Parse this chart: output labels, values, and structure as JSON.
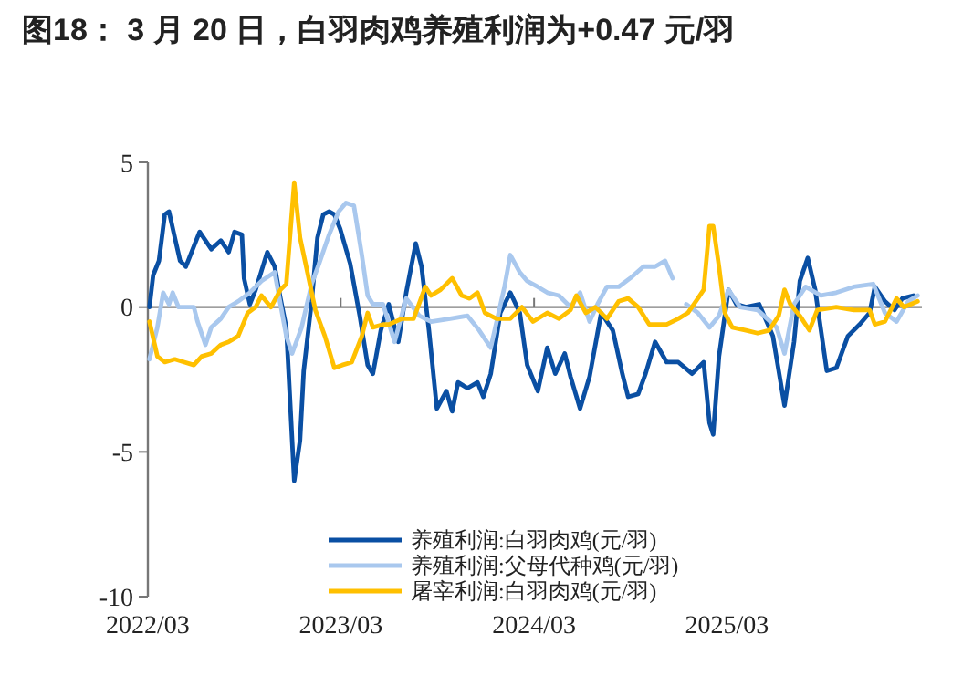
{
  "chart_data": {
    "type": "line",
    "title": "图18：  3 月 20 日，白羽肉鸡养殖利润为+0.47 元/羽",
    "xlim": [
      "2022-03-01",
      "2026-03-05"
    ],
    "xticks": [
      {
        "value": "2022-03-01",
        "label": "2022/03"
      },
      {
        "value": "2023-03-01",
        "label": "2023/03"
      },
      {
        "value": "2024-03-01",
        "label": "2024/03"
      },
      {
        "value": "2025-03-01",
        "label": "2025/03"
      }
    ],
    "ylim": [
      -10,
      5
    ],
    "yticks": [
      -10,
      -5,
      0,
      5
    ],
    "grid": false,
    "ref_lines": [
      {
        "axis": "y",
        "value": 0,
        "color": "#7f7f7f"
      }
    ],
    "legend": "bottom",
    "marker": "none",
    "line_style": "solid",
    "series": [
      {
        "name": "养殖利润:白羽肉鸡(元/羽)",
        "color": "#0a4fa3",
        "x": [
          "2022-03-04",
          "2022-03-11",
          "2022-03-22",
          "2022-04-02",
          "2022-04-10",
          "2022-04-21",
          "2022-05-01",
          "2022-05-12",
          "2022-05-27",
          "2022-06-07",
          "2022-06-18",
          "2022-06-29",
          "2022-07-17",
          "2022-08-01",
          "2022-08-12",
          "2022-08-26",
          "2022-08-30",
          "2022-09-10",
          "2022-09-21",
          "2022-10-13",
          "2022-10-27",
          "2022-11-07",
          "2022-11-18",
          "2022-12-03",
          "2022-12-14",
          "2022-12-21",
          "2023-01-05",
          "2023-01-16",
          "2023-01-27",
          "2023-02-07",
          "2023-02-17",
          "2023-02-28",
          "2023-03-19",
          "2023-04-06",
          "2023-04-21",
          "2023-05-01",
          "2023-05-16",
          "2023-05-31",
          "2023-06-18",
          "2023-07-03",
          "2023-07-21",
          "2023-08-01",
          "2023-08-15",
          "2023-08-30",
          "2023-09-17",
          "2023-09-28",
          "2023-10-09",
          "2023-10-27",
          "2023-11-15",
          "2023-11-26",
          "2023-12-10",
          "2023-12-28",
          "2024-01-16",
          "2024-02-03",
          "2024-02-17",
          "2024-03-08",
          "2024-03-26",
          "2024-04-10",
          "2024-04-28",
          "2024-05-09",
          "2024-05-27",
          "2024-06-14",
          "2024-07-06",
          "2024-07-28",
          "2024-08-15",
          "2024-08-26",
          "2024-09-14",
          "2024-09-28",
          "2024-10-16",
          "2024-11-07",
          "2024-11-29",
          "2024-12-25",
          "2025-01-16",
          "2025-01-27",
          "2025-02-03",
          "2025-02-14",
          "2025-03-04",
          "2025-03-19",
          "2025-04-06",
          "2025-05-01",
          "2025-05-27",
          "2025-06-18",
          "2025-07-06",
          "2025-07-17",
          "2025-08-01",
          "2025-08-15",
          "2025-09-06",
          "2025-09-24",
          "2025-10-16",
          "2025-11-07",
          "2025-11-26",
          "2025-12-06",
          "2025-12-25",
          "2026-01-12",
          "2026-01-27",
          "2026-02-17"
        ],
        "values": [
          0,
          1.1,
          1.6,
          3.2,
          3.3,
          2.4,
          1.6,
          1.4,
          2.1,
          2.6,
          2.3,
          2,
          2.3,
          1.9,
          2.6,
          2.5,
          1,
          0.1,
          0.6,
          1.9,
          1.4,
          0.3,
          -0.7,
          -6,
          -4.6,
          -2.2,
          0.2,
          2.4,
          3.2,
          3.3,
          3.2,
          2.7,
          1.5,
          -0.3,
          -2,
          -2.3,
          -0.8,
          0.1,
          -1.2,
          0.5,
          2.2,
          1.4,
          -0.8,
          -3.5,
          -2.9,
          -3.6,
          -2.6,
          -2.8,
          -2.6,
          -3.1,
          -2.3,
          -0.2,
          0.5,
          -0.2,
          -2,
          -2.9,
          -1.4,
          -2.3,
          -1.6,
          -2.4,
          -3.5,
          -2.4,
          -0.2,
          -0.8,
          -2.3,
          -3.1,
          -3,
          -2.3,
          -1.2,
          -1.9,
          -1.9,
          -2.3,
          -1.9,
          -4,
          -4.4,
          -1.7,
          0.6,
          0.1,
          0,
          0.1,
          -1,
          -3.4,
          -1.2,
          0.9,
          1.7,
          0.6,
          -2.2,
          -2.1,
          -1,
          -0.6,
          -0.2,
          0.7,
          0.2,
          -0.1,
          0.3,
          0.4
        ]
      },
      {
        "name": "养殖利润:父母代种鸡(元/羽)",
        "color": "#a9c8ee",
        "x": [
          "2022-03-04",
          "2022-03-19",
          "2022-03-30",
          "2022-04-10",
          "2022-04-17",
          "2022-04-28",
          "2022-05-27",
          "2022-06-03",
          "2022-06-18",
          "2022-06-29",
          "2022-07-17",
          "2022-08-01",
          "2022-08-19",
          "2022-09-10",
          "2022-10-02",
          "2022-10-27",
          "2022-11-07",
          "2022-11-18",
          "2022-11-29",
          "2022-12-17",
          "2023-01-05",
          "2023-01-19",
          "2023-02-07",
          "2023-02-25",
          "2023-03-11",
          "2023-03-26",
          "2023-04-10",
          "2023-04-21",
          "2023-05-01",
          "2023-05-20",
          "2023-06-11",
          "2023-07-03",
          "2023-07-28",
          "2023-08-19",
          "2023-09-24",
          "2023-10-27",
          "2023-11-18",
          "2023-12-10",
          "2024-01-05",
          "2024-01-16",
          "2024-02-03",
          "2024-02-17",
          "2024-03-08",
          "2024-03-26",
          "2024-04-17",
          "2024-05-09",
          "2024-05-27",
          "2024-06-14",
          "2024-06-29",
          "2024-07-17",
          "2024-08-08",
          "2024-08-30",
          "2024-09-24",
          "2024-10-16",
          "2024-11-04",
          "2024-11-18",
          "2024-11-29",
          "2024-12-14",
          "2025-01-05",
          "2025-01-27",
          "2025-02-14",
          "2025-03-04",
          "2025-03-26",
          "2025-04-28",
          "2025-06-03",
          "2025-06-18",
          "2025-07-06",
          "2025-07-28",
          "2025-08-26",
          "2025-09-24",
          "2025-10-27",
          "2025-12-03",
          "2025-12-25",
          "2026-01-16",
          "2026-02-07",
          "2026-02-25"
        ],
        "values": [
          -1.8,
          -0.7,
          0.5,
          0.1,
          0.5,
          0,
          0,
          -0.5,
          -1.3,
          -0.7,
          -0.4,
          0,
          0.2,
          0.5,
          0.9,
          1.2,
          0.1,
          -1,
          -1.6,
          -0.7,
          0.8,
          1.5,
          2.5,
          3.3,
          3.6,
          3.5,
          1.8,
          0.4,
          0.1,
          0.1,
          -1.2,
          0.3,
          -0.3,
          -0.5,
          -0.4,
          -0.3,
          -0.8,
          -1.4,
          0.7,
          1.8,
          1.2,
          0.9,
          0.7,
          0.5,
          0.4,
          0,
          0.5,
          -0.5,
          0.1,
          0.7,
          0.7,
          1,
          1.4,
          1.4,
          1.6,
          1,
          null,
          0.1,
          -0.2,
          -0.7,
          -0.3,
          0.6,
          0,
          -0.1,
          -0.7,
          -1.6,
          0.1,
          0.7,
          0.4,
          0.5,
          0.7,
          0.8,
          -0.2,
          -0.5,
          0.2,
          0.4
        ]
      },
      {
        "name": "屠宰利润:白羽肉鸡(元/羽)",
        "color": "#ffc000",
        "x": [
          "2022-03-04",
          "2022-03-19",
          "2022-04-02",
          "2022-04-21",
          "2022-05-09",
          "2022-05-27",
          "2022-06-11",
          "2022-06-29",
          "2022-07-17",
          "2022-08-01",
          "2022-08-19",
          "2022-09-06",
          "2022-09-21",
          "2022-10-02",
          "2022-10-20",
          "2022-11-07",
          "2022-11-18",
          "2022-12-03",
          "2022-12-14",
          "2022-12-28",
          "2023-01-12",
          "2023-01-30",
          "2023-02-17",
          "2023-03-04",
          "2023-03-22",
          "2023-04-10",
          "2023-04-21",
          "2023-05-01",
          "2023-05-20",
          "2023-05-31",
          "2023-06-25",
          "2023-07-17",
          "2023-08-08",
          "2023-08-19",
          "2023-09-06",
          "2023-09-28",
          "2023-10-16",
          "2023-10-31",
          "2023-11-15",
          "2023-11-29",
          "2023-12-21",
          "2024-01-16",
          "2024-02-07",
          "2024-02-28",
          "2024-03-26",
          "2024-04-17",
          "2024-05-09",
          "2024-05-20",
          "2024-06-07",
          "2024-06-25",
          "2024-07-17",
          "2024-08-08",
          "2024-08-26",
          "2024-09-14",
          "2024-10-05",
          "2024-11-07",
          "2024-11-29",
          "2024-12-17",
          "2025-01-05",
          "2025-01-16",
          "2025-01-27",
          "2025-02-03",
          "2025-02-14",
          "2025-02-25",
          "2025-03-11",
          "2025-04-06",
          "2025-04-28",
          "2025-05-20",
          "2025-06-07",
          "2025-06-18",
          "2025-06-29",
          "2025-07-17",
          "2025-08-04",
          "2025-08-19",
          "2025-09-24",
          "2025-10-27",
          "2025-11-26",
          "2025-12-06",
          "2025-12-25",
          "2026-01-16",
          "2026-01-30",
          "2026-02-25"
        ],
        "values": [
          -0.5,
          -1.7,
          -1.9,
          -1.8,
          -1.9,
          -2,
          -1.7,
          -1.6,
          -1.3,
          -1.2,
          -1,
          -0.2,
          0,
          0.4,
          0,
          0.6,
          0.8,
          4.3,
          2.4,
          1.2,
          -0.1,
          -1,
          -2.1,
          -2,
          -1.9,
          -1,
          -0.2,
          -0.7,
          -0.6,
          -0.6,
          -0.4,
          -0.4,
          0.7,
          0.4,
          0.6,
          1,
          0.4,
          0.3,
          0.5,
          -0.2,
          -0.4,
          -0.4,
          0,
          -0.5,
          -0.2,
          -0.4,
          -0.1,
          0.4,
          -0.2,
          0,
          -0.4,
          0.2,
          0.3,
          0,
          -0.6,
          -0.6,
          -0.4,
          -0.2,
          0.3,
          0.6,
          2.8,
          2.8,
          1.4,
          -0.2,
          -0.7,
          -0.8,
          -0.9,
          -0.8,
          -0.3,
          0.6,
          0.1,
          -0.3,
          -0.8,
          -0.1,
          0,
          -0.1,
          -0.1,
          -0.6,
          -0.5,
          0.3,
          0,
          0.2
        ]
      }
    ]
  }
}
